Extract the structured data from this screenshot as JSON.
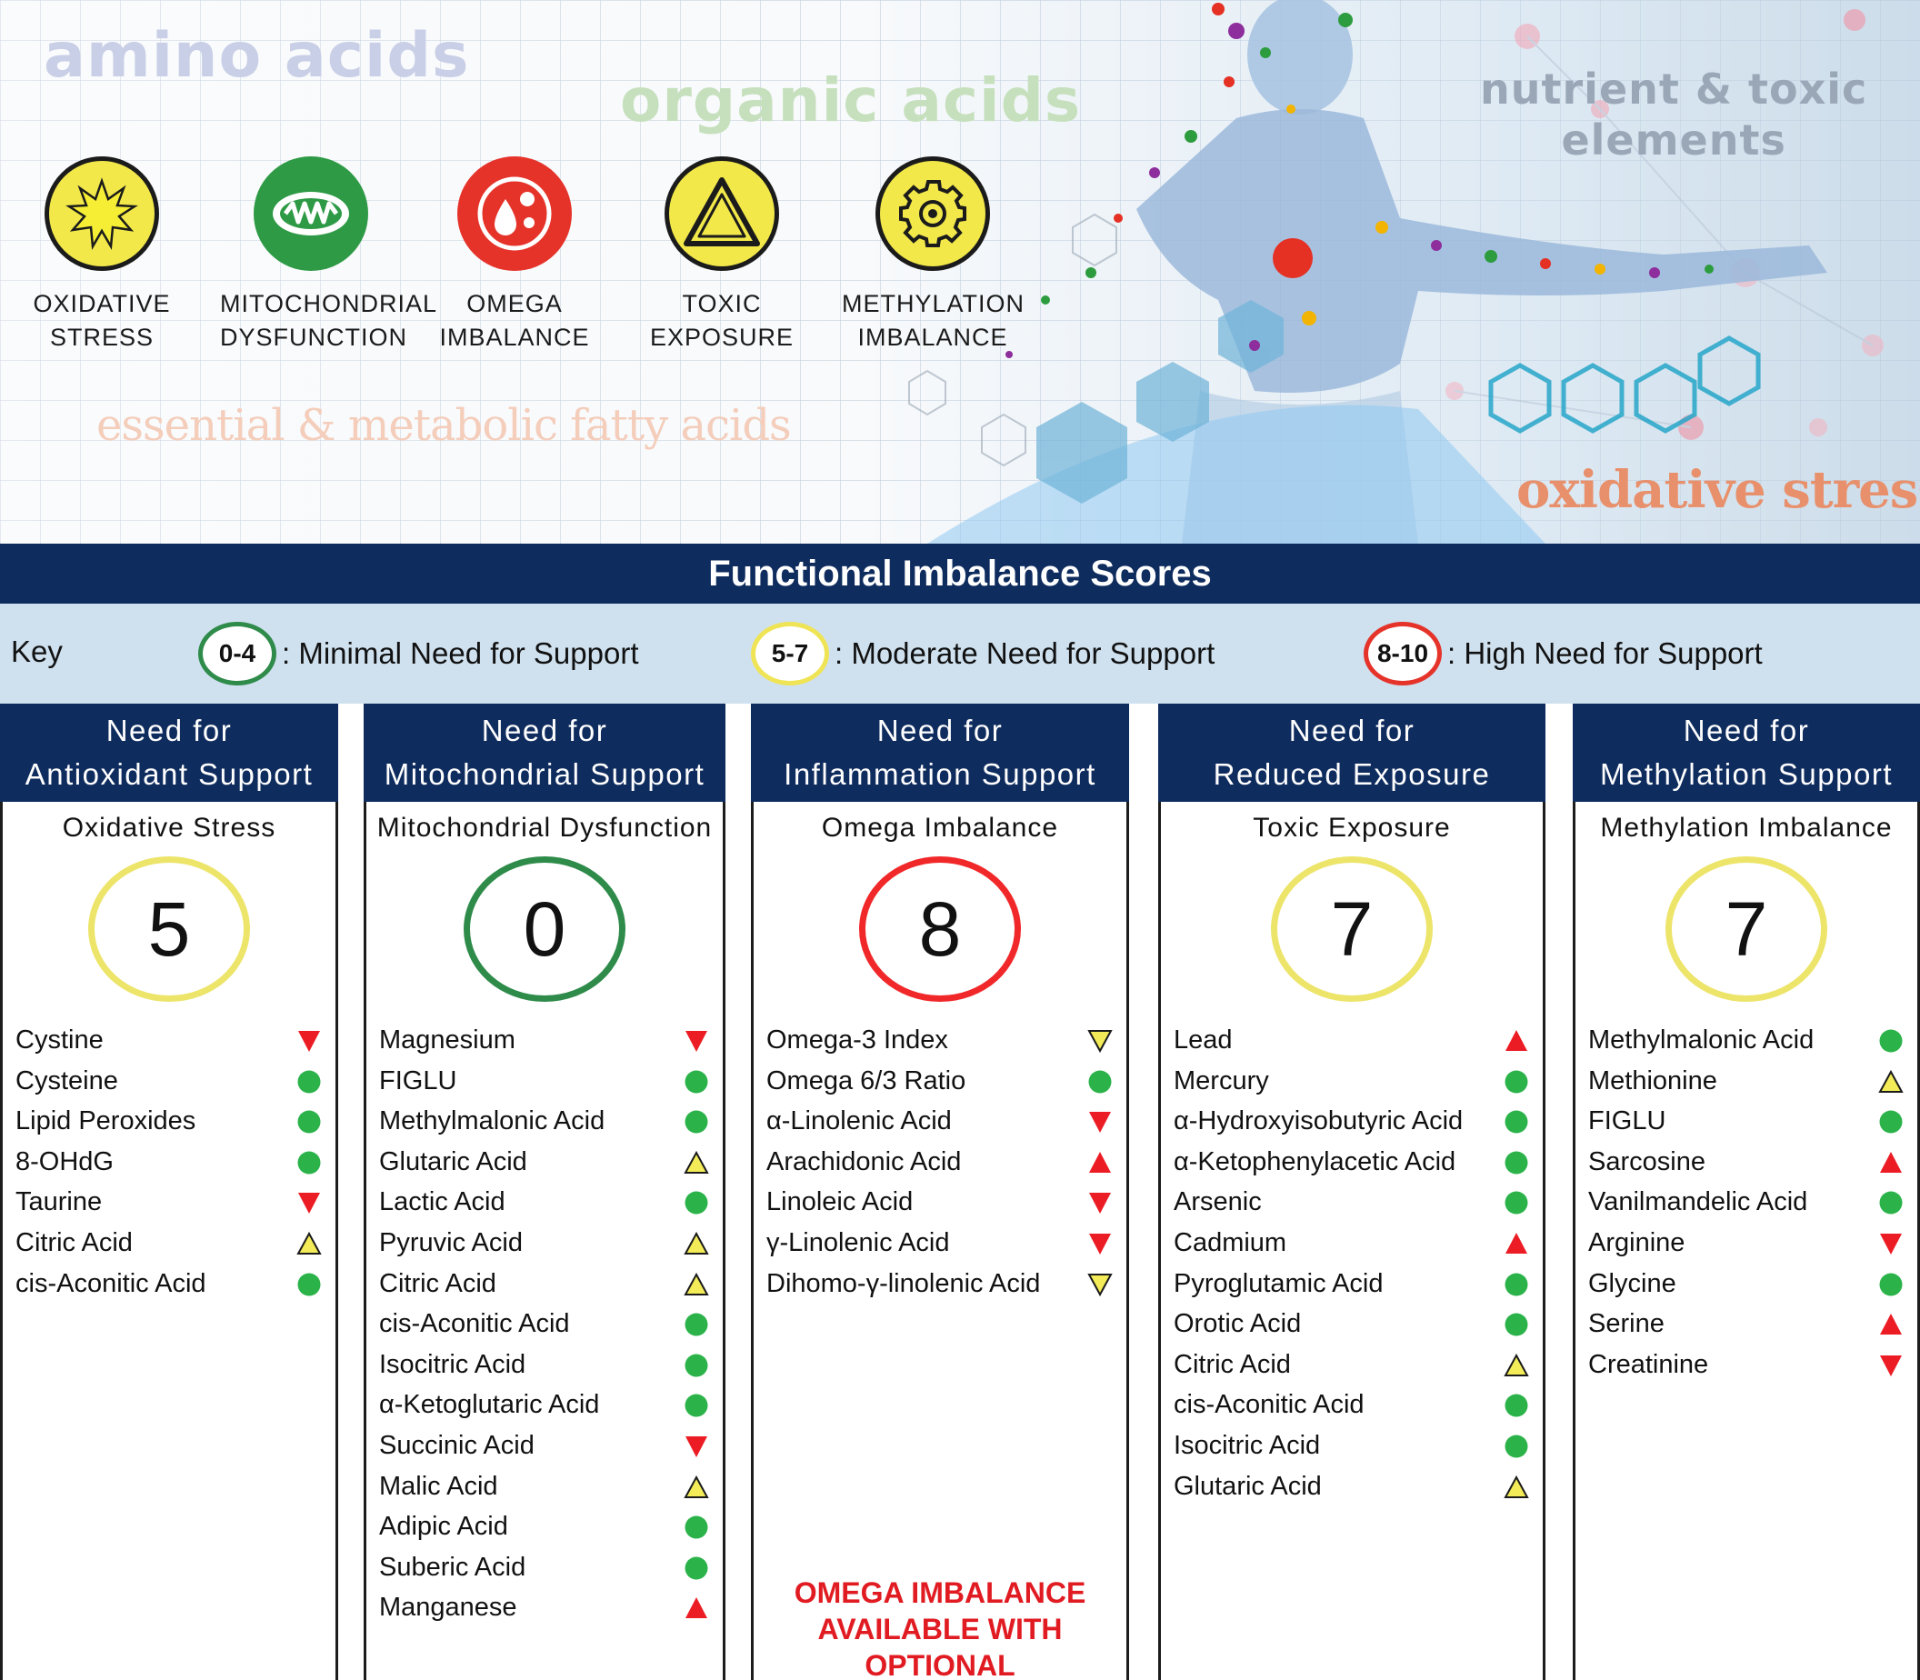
{
  "hero": {
    "words": {
      "amino": "amino acids",
      "organic": "organic acids",
      "nutrient_line1": "nutrient & toxic",
      "nutrient_line2": "elements",
      "essential": "essential & metabolic fatty acids",
      "oxidative": "oxidative stress"
    },
    "legend": [
      {
        "line1": "OXIDATIVE",
        "line2": "STRESS",
        "color": "#f2e84a",
        "border": "#1b1b1b",
        "icon": "starburst-icon"
      },
      {
        "line1": "MITOCHONDRIAL",
        "line2": "DYSFUNCTION",
        "color": "#2e9a45",
        "border": "#2e9a45",
        "icon": "mitochondria-icon"
      },
      {
        "line1": "OMEGA",
        "line2": "IMBALANCE",
        "color": "#e5332a",
        "border": "#e5332a",
        "icon": "droplets-icon"
      },
      {
        "line1": "TOXIC",
        "line2": "EXPOSURE",
        "color": "#f2e84a",
        "border": "#1b1b1b",
        "icon": "warning-triangle-icon"
      },
      {
        "line1": "METHYLATION",
        "line2": "IMBALANCE",
        "color": "#f2e84a",
        "border": "#1b1b1b",
        "icon": "gear-icon"
      }
    ]
  },
  "title": "Functional Imbalance Scores",
  "key": {
    "label": "Key",
    "items": [
      {
        "range": "0-4",
        "text": ": Minimal Need for Support",
        "color": "#2e8b4a"
      },
      {
        "range": "5-7",
        "text": ": Moderate Need for Support",
        "color": "#efe455"
      },
      {
        "range": "8-10",
        "text": ": High Need for Support",
        "color": "#e5332a"
      }
    ]
  },
  "columns": [
    {
      "head1": "Need for",
      "head2": "Antioxidant Support",
      "sub": "Oxidative Stress",
      "score": "5",
      "ring": "#ede46a",
      "markers": [
        {
          "name": "Cystine",
          "ind": "red-down"
        },
        {
          "name": "Cysteine",
          "ind": "green-dot"
        },
        {
          "name": "Lipid Peroxides",
          "ind": "green-dot"
        },
        {
          "name": "8-OHdG",
          "ind": "green-dot"
        },
        {
          "name": "Taurine",
          "ind": "red-down"
        },
        {
          "name": "Citric Acid",
          "ind": "yellow-up"
        },
        {
          "name": "cis-Aconitic Acid",
          "ind": "green-dot"
        }
      ]
    },
    {
      "head1": "Need for",
      "head2": "Mitochondrial Support",
      "sub": "Mitochondrial Dysfunction",
      "score": "0",
      "ring": "#2e8b4a",
      "markers": [
        {
          "name": "Magnesium",
          "ind": "red-down"
        },
        {
          "name": "FIGLU",
          "ind": "green-dot"
        },
        {
          "name": "Methylmalonic Acid",
          "ind": "green-dot"
        },
        {
          "name": "Glutaric Acid",
          "ind": "yellow-up"
        },
        {
          "name": "Lactic Acid",
          "ind": "green-dot"
        },
        {
          "name": "Pyruvic Acid",
          "ind": "yellow-up"
        },
        {
          "name": "Citric Acid",
          "ind": "yellow-up"
        },
        {
          "name": "cis-Aconitic Acid",
          "ind": "green-dot"
        },
        {
          "name": "Isocitric Acid",
          "ind": "green-dot"
        },
        {
          "name": "α-Ketoglutaric Acid",
          "ind": "green-dot"
        },
        {
          "name": "Succinic Acid",
          "ind": "red-down"
        },
        {
          "name": "Malic Acid",
          "ind": "yellow-up"
        },
        {
          "name": "Adipic Acid",
          "ind": "green-dot"
        },
        {
          "name": "Suberic Acid",
          "ind": "green-dot"
        },
        {
          "name": "Manganese",
          "ind": "red-up"
        }
      ]
    },
    {
      "head1": "Need for",
      "head2": "Inflammation Support",
      "sub": "Omega Imbalance",
      "score": "8",
      "ring": "#f1282a",
      "markers": [
        {
          "name": "Omega-3 Index",
          "ind": "yellow-down"
        },
        {
          "name": "Omega 6/3 Ratio",
          "ind": "green-dot"
        },
        {
          "name": "α-Linolenic Acid",
          "ind": "red-down"
        },
        {
          "name": "Arachidonic Acid",
          "ind": "red-up"
        },
        {
          "name": "Linoleic Acid",
          "ind": "red-down"
        },
        {
          "name": "γ-Linolenic Acid",
          "ind": "red-down"
        },
        {
          "name": "Dihomo-γ-linolenic Acid",
          "ind": "yellow-down"
        }
      ],
      "note": [
        "OMEGA IMBALANCE",
        "AVAILABLE WITH",
        "OPTIONAL"
      ]
    },
    {
      "head1": "Need for",
      "head2": "Reduced Exposure",
      "sub": "Toxic Exposure",
      "score": "7",
      "ring": "#ede46a",
      "markers": [
        {
          "name": "Lead",
          "ind": "red-up"
        },
        {
          "name": "Mercury",
          "ind": "green-dot"
        },
        {
          "name": "α-Hydroxyisobutyric Acid",
          "ind": "green-dot"
        },
        {
          "name": "α-Ketophenylacetic Acid",
          "ind": "green-dot"
        },
        {
          "name": "Arsenic",
          "ind": "green-dot"
        },
        {
          "name": "Cadmium",
          "ind": "red-up"
        },
        {
          "name": "Pyroglutamic Acid",
          "ind": "green-dot"
        },
        {
          "name": "Orotic Acid",
          "ind": "green-dot"
        },
        {
          "name": "Citric Acid",
          "ind": "yellow-up"
        },
        {
          "name": "cis-Aconitic Acid",
          "ind": "green-dot"
        },
        {
          "name": "Isocitric Acid",
          "ind": "green-dot"
        },
        {
          "name": "Glutaric Acid",
          "ind": "yellow-up"
        }
      ]
    },
    {
      "head1": "Need for",
      "head2": "Methylation Support",
      "sub": "Methylation Imbalance",
      "score": "7",
      "ring": "#ede46a",
      "markers": [
        {
          "name": "Methylmalonic Acid",
          "ind": "green-dot"
        },
        {
          "name": "Methionine",
          "ind": "yellow-up"
        },
        {
          "name": "FIGLU",
          "ind": "green-dot"
        },
        {
          "name": "Sarcosine",
          "ind": "red-up"
        },
        {
          "name": "Vanilmandelic Acid",
          "ind": "green-dot"
        },
        {
          "name": "Arginine",
          "ind": "red-down"
        },
        {
          "name": "Glycine",
          "ind": "green-dot"
        },
        {
          "name": "Serine",
          "ind": "red-up"
        },
        {
          "name": "Creatinine",
          "ind": "red-down"
        }
      ]
    }
  ]
}
